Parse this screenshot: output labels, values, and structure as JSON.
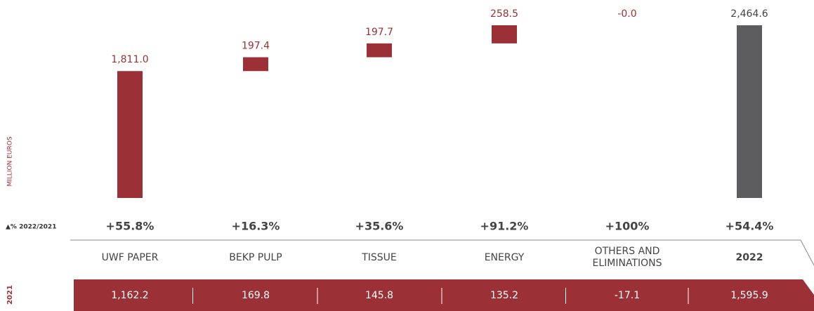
{
  "chart_data": {
    "type": "waterfall",
    "y_label": "MILLION EUROS",
    "categories": [
      "UWF PAPER",
      "BEKP PULP",
      "TISSUE",
      "ENERGY",
      "OTHERS AND ELIMINATIONS",
      "2022"
    ],
    "values": [
      1811.0,
      197.4,
      197.7,
      258.5,
      -0.0,
      2464.6
    ],
    "value_labels": [
      "1,811.0",
      "197.4",
      "197.7",
      "258.5",
      "-0.0",
      "2,464.6"
    ],
    "colors": [
      "#9b3036",
      "#9b3036",
      "#9b3036",
      "#9b3036",
      "#9b3036",
      "#5d5d5f"
    ],
    "change_label": "▲% 2022/2021",
    "changes": [
      "+55.8%",
      "+16.3%",
      "+35.6%",
      "+91.2%",
      "+100%",
      "+54.4%"
    ],
    "base_label": "2021",
    "base_values": [
      1162.2,
      169.8,
      145.8,
      135.2,
      -17.1,
      1595.9
    ],
    "base_value_labels": [
      "1,162.2",
      "169.8",
      "145.8",
      "135.2",
      "-17.1",
      "1,595.9"
    ]
  }
}
